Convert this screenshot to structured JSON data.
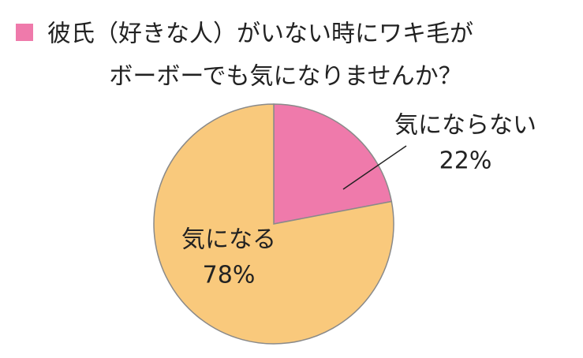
{
  "chart_data": {
    "type": "pie",
    "title": [
      "彼氏（好きな人）がいない時にワキ毛が",
      "ボーボーでも気になりませんか？"
    ],
    "categories": [
      "気にならない",
      "気になる"
    ],
    "values": [
      22,
      78
    ],
    "value_labels": [
      "22%",
      "78%"
    ],
    "colors": [
      "#ef7aab",
      "#f9c97c"
    ]
  }
}
